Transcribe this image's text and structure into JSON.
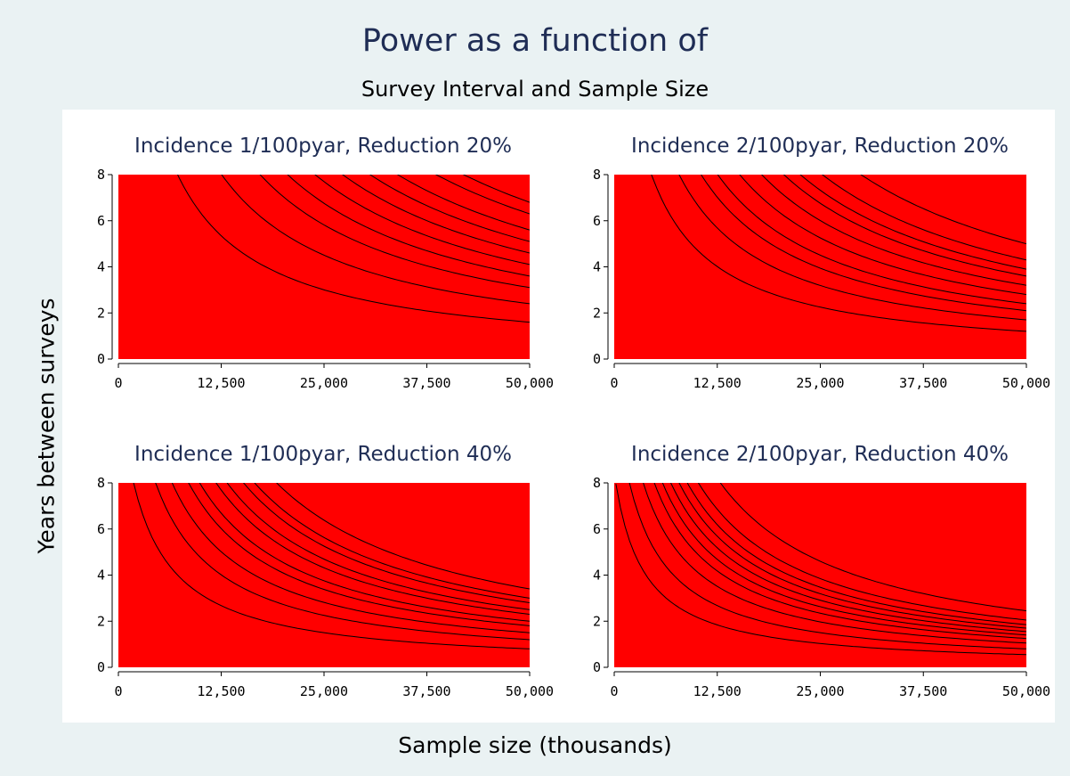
{
  "figure": {
    "title": "Power as a function of",
    "subtitle": "Survey Interval and Sample Size",
    "ylabel": "Years between surveys",
    "xlabel": "Sample size (thousands)"
  },
  "chart_data": [
    {
      "type": "heatmap",
      "title": "Incidence 1/100pyar, Reduction 20%",
      "xlim": [
        0,
        50000
      ],
      "ylim": [
        0,
        8
      ],
      "xticks": [
        "0",
        "12,500",
        "25,000",
        "37,500",
        "50,000"
      ],
      "yticks": [
        "0",
        "2",
        "4",
        "6",
        "8"
      ],
      "xtick_values": [
        0,
        12500,
        25000,
        37500,
        50000
      ],
      "ytick_values": [
        0,
        2,
        4,
        6,
        8
      ],
      "colorscale": [
        "#ff0000",
        "#ff9900",
        "#ffff00",
        "#00ff00"
      ],
      "contour_levels": 10,
      "contour_y_at_xmax": [
        1.6,
        2.4,
        3.1,
        3.6,
        4.1,
        4.6,
        5.1,
        5.6,
        6.3,
        6.8
      ]
    },
    {
      "type": "heatmap",
      "title": "Incidence 2/100pyar, Reduction 20%",
      "xlim": [
        0,
        50000
      ],
      "ylim": [
        0,
        8
      ],
      "xticks": [
        "0",
        "12,500",
        "25,000",
        "37,500",
        "50,000"
      ],
      "yticks": [
        "0",
        "2",
        "4",
        "6",
        "8"
      ],
      "xtick_values": [
        0,
        12500,
        25000,
        37500,
        50000
      ],
      "ytick_values": [
        0,
        2,
        4,
        6,
        8
      ],
      "colorscale": [
        "#ff0000",
        "#ff9900",
        "#ffff00",
        "#00ff00"
      ],
      "contour_levels": 10,
      "contour_y_at_xmax": [
        1.2,
        1.7,
        2.1,
        2.4,
        2.8,
        3.2,
        3.6,
        3.9,
        4.3,
        5.0
      ]
    },
    {
      "type": "heatmap",
      "title": "Incidence 1/100pyar, Reduction 40%",
      "xlim": [
        0,
        50000
      ],
      "ylim": [
        0,
        8
      ],
      "xticks": [
        "0",
        "12,500",
        "25,000",
        "37,500",
        "50,000"
      ],
      "yticks": [
        "0",
        "2",
        "4",
        "6",
        "8"
      ],
      "xtick_values": [
        0,
        12500,
        25000,
        37500,
        50000
      ],
      "ytick_values": [
        0,
        2,
        4,
        6,
        8
      ],
      "colorscale": [
        "#ff0000",
        "#ff9900",
        "#ffff00",
        "#00ff00"
      ],
      "contour_levels": 10,
      "contour_y_at_xmax": [
        0.8,
        1.2,
        1.5,
        1.8,
        2.0,
        2.3,
        2.5,
        2.8,
        3.0,
        3.4
      ]
    },
    {
      "type": "heatmap",
      "title": "Incidence 2/100pyar, Reduction 40%",
      "xlim": [
        0,
        50000
      ],
      "ylim": [
        0,
        8
      ],
      "xticks": [
        "0",
        "12,500",
        "25,000",
        "37,500",
        "50,000"
      ],
      "yticks": [
        "0",
        "2",
        "4",
        "6",
        "8"
      ],
      "xtick_values": [
        0,
        12500,
        25000,
        37500,
        50000
      ],
      "ytick_values": [
        0,
        2,
        4,
        6,
        8
      ],
      "colorscale": [
        "#ff0000",
        "#ff9900",
        "#ffff00",
        "#00ff00"
      ],
      "contour_levels": 10,
      "contour_y_at_xmax": [
        0.55,
        0.8,
        1.05,
        1.25,
        1.4,
        1.55,
        1.7,
        1.85,
        2.05,
        2.45
      ]
    }
  ]
}
